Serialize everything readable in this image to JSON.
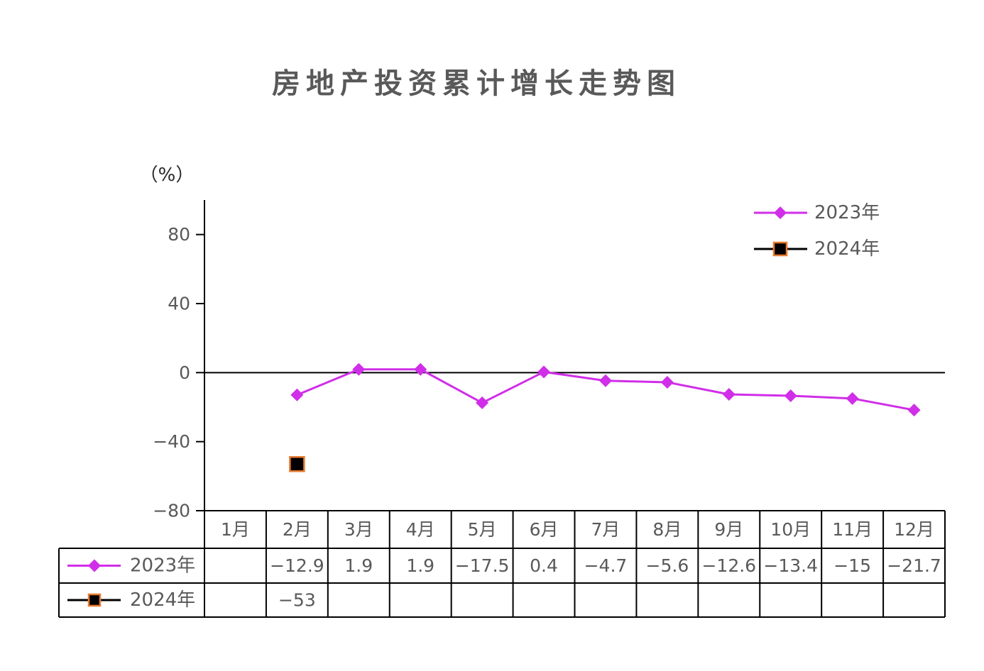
{
  "chart_data": {
    "type": "line",
    "title": "房地产投资累计增长走势图",
    "ylabel": "（%）",
    "categories": [
      "1月",
      "2月",
      "3月",
      "4月",
      "5月",
      "6月",
      "7月",
      "8月",
      "9月",
      "10月",
      "11月",
      "12月"
    ],
    "ylim": [
      -80,
      100
    ],
    "yticks": [
      80,
      40,
      0,
      -40,
      -80
    ],
    "grid": false,
    "legend_position": "top-right",
    "data_table": true,
    "series": [
      {
        "name": "2023年",
        "values": [
          null,
          -12.9,
          1.9,
          1.9,
          -17.5,
          0.4,
          -4.7,
          -5.6,
          -12.6,
          -13.4,
          -15,
          -21.7
        ],
        "color": "#d02ee8",
        "marker": "diamond"
      },
      {
        "name": "2024年",
        "values": [
          null,
          -53,
          null,
          null,
          null,
          null,
          null,
          null,
          null,
          null,
          null,
          null
        ],
        "color": "#000000",
        "marker": "square",
        "marker_edge_color": "#e8792f"
      }
    ]
  },
  "colors": {
    "title": "#595959",
    "text": "#595959",
    "axis": "#000000"
  }
}
